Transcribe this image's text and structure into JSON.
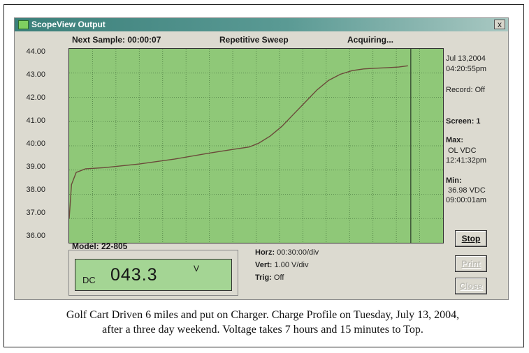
{
  "window": {
    "title": "ScopeView Output",
    "close_label": "x"
  },
  "status_bar": {
    "next_sample": "Next Sample:  00:00:07",
    "mode": "Repetitive Sweep",
    "state": "Acquiring..."
  },
  "y_axis": {
    "labels": [
      "44.00",
      "43.00",
      "42.00",
      "41.00",
      "40:00",
      "39.00",
      "38.00",
      "37.00",
      "36.00"
    ]
  },
  "side_panel": {
    "date": "Jul 13,2004",
    "time": "04:20:55pm",
    "record": "Record: Off",
    "screen": "Screen:  1",
    "max_label": "Max:",
    "max_value": "OL  VDC",
    "max_time": "12:41:32pm",
    "min_label": "Min:",
    "min_value": "36.98  VDC",
    "min_time": "09:00:01am"
  },
  "meter": {
    "model": "Model: 22-805",
    "mode": "DC",
    "value": "043.3",
    "unit": "V"
  },
  "scale": {
    "horz_key": "Horz:",
    "horz_val": "00:30:00/div",
    "vert_key": "Vert:",
    "vert_val": "1.00 V/div",
    "trig_key": "Trig:",
    "trig_val": "Off"
  },
  "buttons": {
    "stop": "Stop",
    "print": "Print",
    "close": "Close"
  },
  "caption": {
    "line1": "Golf Cart Driven 6 miles and put on Charger.  Charge Profile on Tuesday, July 13, 2004,",
    "line2": "after a three day weekend.  Voltage takes 7 hours and 15 minutes to Top."
  },
  "colors": {
    "plot_bg": "#8fc878",
    "trace": "#6b4a3a",
    "meter_bg": "#a4d594",
    "titlebar": "#3b7f7a"
  },
  "chart_data": {
    "type": "line",
    "x_unit": "div (Horz 00:30:00/div)",
    "xlim": [
      0,
      16
    ],
    "ylim": [
      36,
      44
    ],
    "series": [
      {
        "x": [
          0.0,
          0.1,
          0.3,
          0.7,
          1.5,
          3.0,
          4.5,
          6.0,
          7.0,
          7.7,
          8.1,
          8.6,
          9.1,
          9.6,
          10.1,
          10.6,
          11.1,
          11.6,
          12.1,
          12.6,
          13.1,
          13.6,
          14.1,
          14.5
        ],
        "y": [
          37.0,
          38.4,
          38.9,
          39.05,
          39.1,
          39.25,
          39.45,
          39.7,
          39.85,
          39.95,
          40.1,
          40.4,
          40.8,
          41.3,
          41.8,
          42.3,
          42.7,
          42.95,
          43.1,
          43.17,
          43.2,
          43.22,
          43.25,
          43.3
        ]
      }
    ]
  }
}
